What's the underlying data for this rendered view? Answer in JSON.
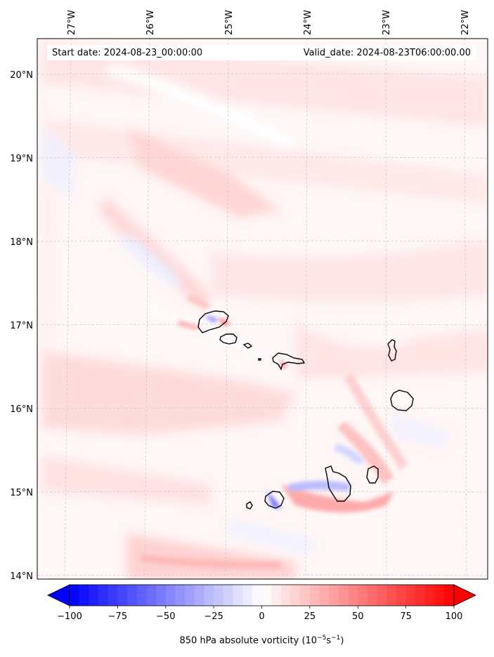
{
  "header": {
    "start_date": "Start date: 2024-08-23_00:00:00",
    "valid_date": "Valid_date: 2024-08-23T06:00:00.00"
  },
  "lon_labels": [
    "27°W",
    "26°W",
    "25°W",
    "24°W",
    "23°W",
    "22°W"
  ],
  "lat_labels": [
    "20°N",
    "19°N",
    "18°N",
    "17°N",
    "16°N",
    "15°N",
    "14°N"
  ],
  "colorbar": {
    "ticks": [
      "−100",
      "−75",
      "−50",
      "−25",
      "0",
      "25",
      "50",
      "75",
      "100"
    ],
    "label_main": "850 hPa absolute vorticity (10",
    "label_exp1": "−5",
    "label_mid": "s",
    "label_exp2": "−1",
    "label_end": ")",
    "min": -100,
    "max": 100,
    "colors": {
      "negative": "#0000ff",
      "zero": "#ffffff",
      "positive": "#ff0000"
    }
  },
  "colors": {
    "gridline": "#c8c8c8",
    "coastline": "#000000"
  }
}
